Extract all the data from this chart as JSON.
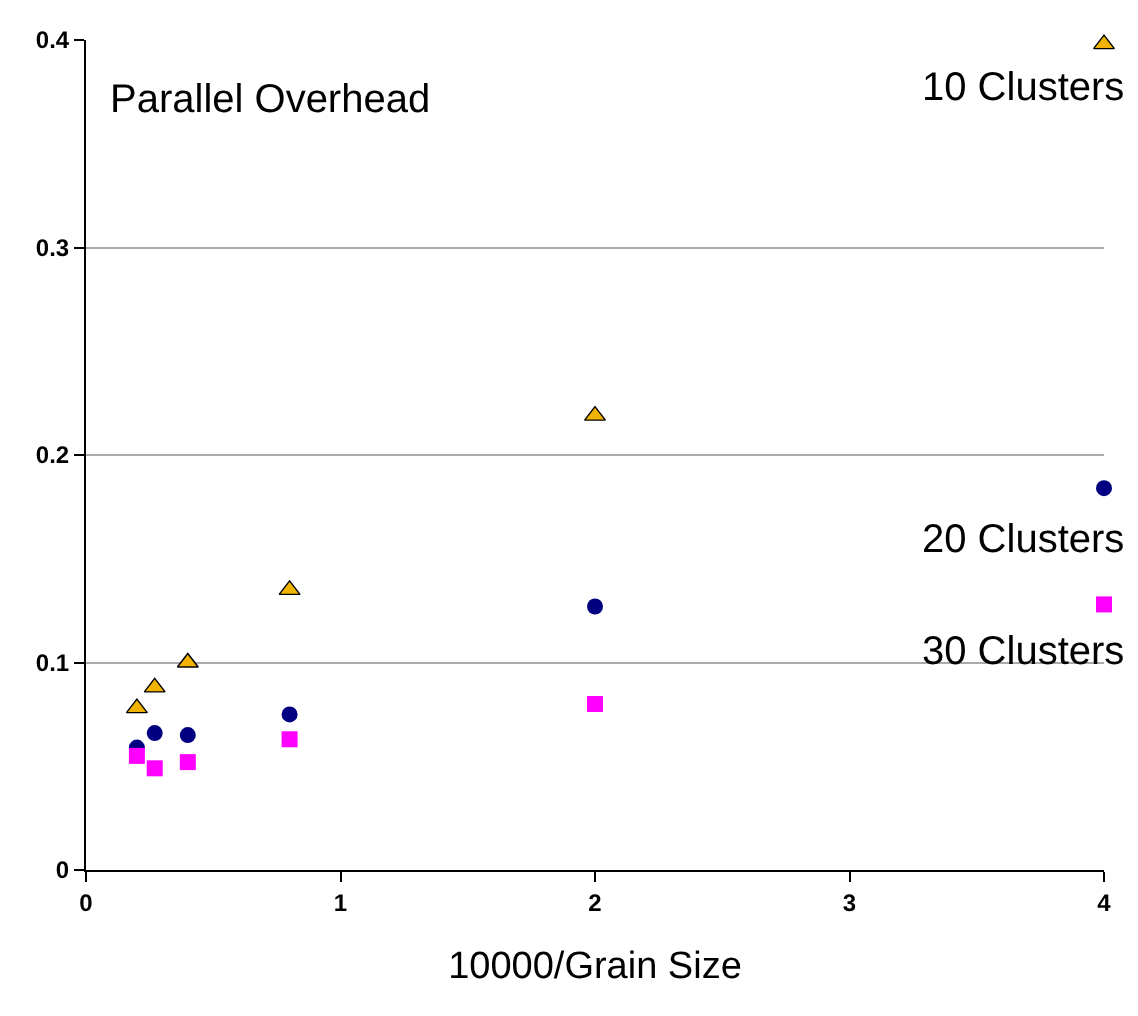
{
  "chart_data": {
    "type": "scatter",
    "title": "Parallel Overhead",
    "xlabel": "10000/Grain Size",
    "x": [
      0.2,
      0.27,
      0.4,
      0.8,
      2,
      4
    ],
    "series": [
      {
        "name": "10 Clusters",
        "color": "#f0b400",
        "marker": "triangle",
        "values": [
          0.078,
          0.088,
          0.1,
          0.135,
          0.219,
          0.398
        ]
      },
      {
        "name": "20 Clusters",
        "color": "#000080",
        "marker": "circle",
        "values": [
          0.059,
          0.066,
          0.065,
          0.075,
          0.127,
          0.184
        ]
      },
      {
        "name": "30 Clusters",
        "color": "#ff00ff",
        "marker": "square",
        "values": [
          0.055,
          0.049,
          0.052,
          0.063,
          0.08,
          0.128
        ]
      }
    ],
    "xlim": [
      0,
      4
    ],
    "xticks": [
      0,
      1,
      2,
      3,
      4
    ],
    "ylim": [
      0,
      0.4
    ],
    "yticks": [
      0,
      0.1,
      0.2,
      0.3,
      0.4
    ],
    "grid": "y",
    "legend": false
  }
}
